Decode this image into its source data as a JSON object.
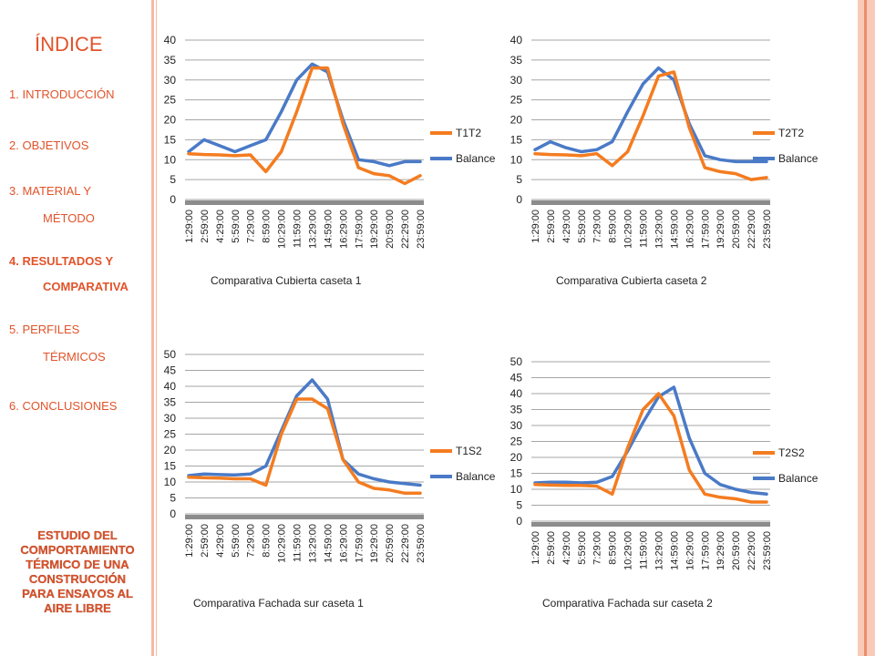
{
  "sidebar": {
    "title": "ÍNDICE",
    "items": [
      {
        "label": "1. INTRODUCCIÓN"
      },
      {
        "label": "2. OBJETIVOS"
      },
      {
        "label": "3. MATERIAL Y"
      },
      {
        "label": "MÉTODO"
      },
      {
        "label": "4. RESULTADOS  Y"
      },
      {
        "label": "COMPARATIVA"
      },
      {
        "label": "5. PERFILES"
      },
      {
        "label": "TÉRMICOS"
      },
      {
        "label": "6. CONCLUSIONES"
      }
    ],
    "footer": [
      "ESTUDIO DEL",
      "COMPORTAMIENTO",
      "TÉRMICO DE UNA",
      "CONSTRUCCIÓN",
      "PARA ENSAYOS AL",
      "AIRE LIBRE"
    ]
  },
  "colors": {
    "orange": "#f47c20",
    "blue": "#4a7ac7",
    "accent": "#e2532a"
  },
  "chart_data": [
    {
      "type": "line",
      "title": "Comparativa Cubierta caseta 1",
      "categories": [
        "1:29:00",
        "2:59:00",
        "4:29:00",
        "5:59:00",
        "7:29:00",
        "8:59:00",
        "10:29:00",
        "11:59:00",
        "13:29:00",
        "14:59:00",
        "16:29:00",
        "17:59:00",
        "19:29:00",
        "20:59:00",
        "22:29:00",
        "23:59:00"
      ],
      "ylim": [
        0,
        40
      ],
      "yticks": [
        0,
        5,
        10,
        15,
        20,
        25,
        30,
        35,
        40
      ],
      "series": [
        {
          "name": "T1T2",
          "color": "#f47c20",
          "values": [
            11.5,
            11.3,
            11.2,
            11.0,
            11.2,
            7.0,
            12.0,
            22.0,
            33.0,
            33.0,
            19.0,
            8.0,
            6.5,
            6.0,
            4.0,
            6.0
          ]
        },
        {
          "name": "Balance",
          "color": "#4a7ac7",
          "values": [
            12.0,
            15.0,
            13.5,
            12.0,
            13.5,
            15.0,
            22.0,
            30.0,
            34.0,
            32.0,
            20.0,
            10.0,
            9.5,
            8.5,
            9.5,
            9.5
          ]
        }
      ]
    },
    {
      "type": "line",
      "title": "Comparativa Cubierta caseta 2",
      "categories": [
        "1:29:00",
        "2:59:00",
        "4:29:00",
        "5:59:00",
        "7:29:00",
        "8:59:00",
        "10:29:00",
        "11:59:00",
        "13:29:00",
        "14:59:00",
        "16:29:00",
        "17:59:00",
        "19:29:00",
        "20:59:00",
        "22:29:00",
        "23:59:00"
      ],
      "ylim": [
        0,
        40
      ],
      "yticks": [
        0,
        5,
        10,
        15,
        20,
        25,
        30,
        35,
        40
      ],
      "series": [
        {
          "name": "T2T2",
          "color": "#f47c20",
          "values": [
            11.5,
            11.3,
            11.2,
            11.0,
            11.5,
            8.5,
            12.0,
            21.0,
            31.0,
            32.0,
            18.0,
            8.0,
            7.0,
            6.5,
            5.0,
            5.5
          ]
        },
        {
          "name": "Balance",
          "color": "#4a7ac7",
          "values": [
            12.5,
            14.5,
            13.0,
            12.0,
            12.5,
            14.5,
            22.0,
            29.0,
            33.0,
            30.0,
            19.0,
            11.0,
            10.0,
            9.5,
            9.5,
            9.5
          ]
        }
      ]
    },
    {
      "type": "line",
      "title": "Comparativa Fachada sur caseta 1",
      "categories": [
        "1:29:00",
        "2:59:00",
        "4:29:00",
        "5:59:00",
        "7:29:00",
        "8:59:00",
        "10:29:00",
        "11:59:00",
        "13:29:00",
        "14:59:00",
        "16:29:00",
        "17:59:00",
        "19:29:00",
        "20:59:00",
        "22:29:00",
        "23:59:00"
      ],
      "ylim": [
        0,
        50
      ],
      "yticks": [
        0,
        5,
        10,
        15,
        20,
        25,
        30,
        35,
        40,
        45,
        50
      ],
      "series": [
        {
          "name": "T1S2",
          "color": "#f47c20",
          "values": [
            11.5,
            11.3,
            11.2,
            11.0,
            11.0,
            9.0,
            25.0,
            36.0,
            36.0,
            33.0,
            17.0,
            10.0,
            8.0,
            7.5,
            6.5,
            6.5
          ]
        },
        {
          "name": "Balance",
          "color": "#4a7ac7",
          "values": [
            12.0,
            12.5,
            12.3,
            12.2,
            12.5,
            15.0,
            26.0,
            37.0,
            42.0,
            36.0,
            17.0,
            12.5,
            11.0,
            10.0,
            9.5,
            9.0
          ]
        }
      ]
    },
    {
      "type": "line",
      "title": "Comparativa Fachada sur caseta 2",
      "categories": [
        "1:29:00",
        "2:59:00",
        "4:29:00",
        "5:59:00",
        "7:29:00",
        "8:59:00",
        "10:29:00",
        "11:59:00",
        "13:29:00",
        "14:59:00",
        "16:29:00",
        "17:59:00",
        "19:29:00",
        "20:59:00",
        "22:29:00",
        "23:59:00"
      ],
      "ylim": [
        0,
        50
      ],
      "yticks": [
        0,
        5,
        10,
        15,
        20,
        25,
        30,
        35,
        40,
        45,
        50
      ],
      "series": [
        {
          "name": "T2S2",
          "color": "#f47c20",
          "values": [
            11.5,
            11.3,
            11.2,
            11.2,
            11.0,
            8.5,
            23.0,
            35.0,
            40.0,
            33.0,
            16.0,
            8.5,
            7.5,
            7.0,
            6.0,
            6.0
          ]
        },
        {
          "name": "Balance",
          "color": "#4a7ac7",
          "values": [
            12.0,
            12.2,
            12.2,
            12.0,
            12.2,
            14.0,
            22.0,
            31.0,
            39.0,
            42.0,
            26.0,
            15.0,
            11.5,
            10.0,
            9.0,
            8.5
          ]
        }
      ]
    }
  ]
}
